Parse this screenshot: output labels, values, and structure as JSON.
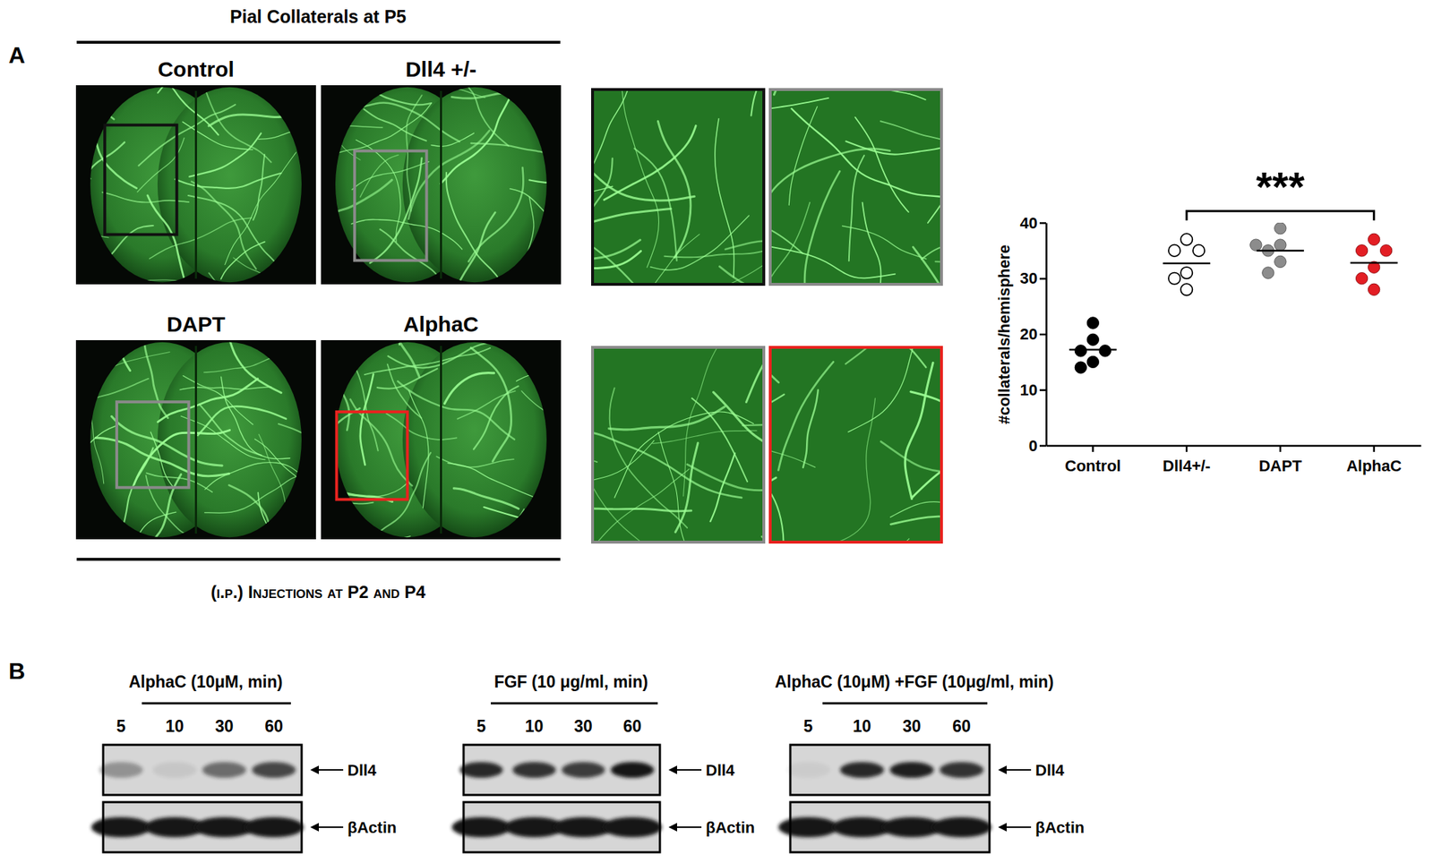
{
  "figure": {
    "panel_a": {
      "label": "A",
      "title": "Pial Collaterals at P5",
      "images": [
        "Control",
        "Dll4 +/-",
        "DAPT",
        "AlphaC"
      ],
      "footer": "(i.p.) Injections at P2 and P4"
    },
    "panel_b": {
      "label": "B",
      "blots": [
        {
          "title": "AlphaC (10μM, min)",
          "lanes": [
            "5",
            "10",
            "30",
            "60"
          ],
          "rows": [
            {
              "name": "Dll4",
              "intensity": [
                0.35,
                0.08,
                0.55,
                0.75
              ]
            },
            {
              "name": "βActin",
              "intensity": [
                1,
                1,
                1,
                1
              ]
            }
          ]
        },
        {
          "title": "FGF (10 μg/ml, min)",
          "lanes": [
            "5",
            "10",
            "30",
            "60"
          ],
          "rows": [
            {
              "name": "Dll4",
              "intensity": [
                0.9,
                0.85,
                0.8,
                1
              ]
            },
            {
              "name": "βActin",
              "intensity": [
                1,
                1,
                1,
                1
              ]
            }
          ]
        },
        {
          "title": "AlphaC (10μM) +FGF (10μg/ml, min)",
          "lanes": [
            "5",
            "10",
            "30",
            "60"
          ],
          "rows": [
            {
              "name": "Dll4",
              "intensity": [
                0.05,
                0.9,
                0.95,
                0.85
              ]
            },
            {
              "name": "βActin",
              "intensity": [
                1,
                1,
                1,
                1
              ]
            }
          ]
        }
      ]
    }
  },
  "chart_data": {
    "type": "strip",
    "categories": [
      "Control",
      "Dll4+/-",
      "DAPT",
      "AlphaC"
    ],
    "values": [
      [
        22,
        19,
        17,
        17,
        15,
        14
      ],
      [
        37,
        35,
        35,
        31,
        28,
        30
      ],
      [
        39,
        36,
        36,
        35,
        33,
        31
      ],
      [
        37,
        35,
        35,
        32,
        30,
        28
      ]
    ],
    "means": [
      17.2,
      32.7,
      35,
      32.8
    ],
    "colors": [
      "#000000",
      "#ffffff",
      "#8c8c8c",
      "#e31e24"
    ],
    "marker": "circle",
    "ylabel": "#collaterals/hemisphere",
    "ylim": [
      0,
      40
    ],
    "yticks": [
      0,
      10,
      20,
      30,
      40
    ],
    "grid": false,
    "annotations": [
      {
        "text": "***",
        "categories": [
          "Dll4+/-",
          "AlphaC"
        ]
      }
    ]
  }
}
